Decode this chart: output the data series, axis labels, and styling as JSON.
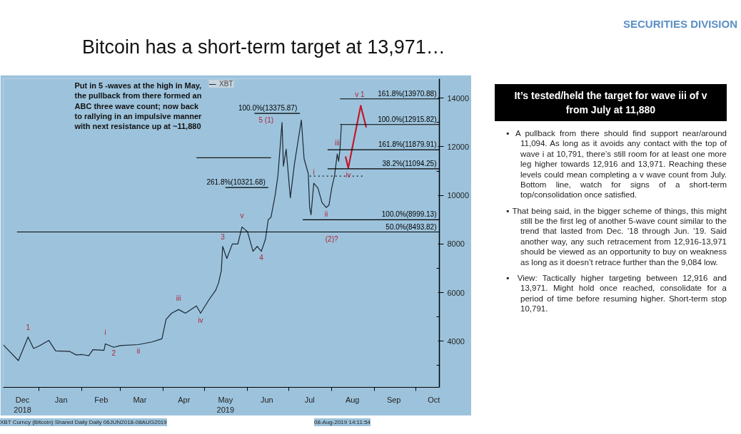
{
  "chart_data": [
    {
      "type": "line",
      "title": "Bitcoin has a short-term target at 13,971…",
      "xlim": [
        "2018-12-06",
        "2019-10-18"
      ],
      "xticks": [
        {
          "value": "2018-12-20",
          "label": "Dec\n2018"
        },
        {
          "value": "2019-01-01",
          "label": null
        },
        {
          "value": "2019-01-17",
          "label": "Jan"
        },
        {
          "value": "2019-02-01",
          "label": null
        },
        {
          "value": "2019-02-15",
          "label": "Feb"
        },
        {
          "value": "2019-03-01",
          "label": null
        },
        {
          "value": "2019-03-15",
          "label": "Mar"
        },
        {
          "value": "2019-04-01",
          "label": null
        },
        {
          "value": "2019-04-16",
          "label": "Apr"
        },
        {
          "value": "2019-05-01",
          "label": null
        },
        {
          "value": "2019-05-16",
          "label": "May\n2019"
        },
        {
          "value": "2019-06-01",
          "label": null
        },
        {
          "value": "2019-06-15",
          "label": "Jun"
        },
        {
          "value": "2019-07-01",
          "label": null
        },
        {
          "value": "2019-07-16",
          "label": "Jul"
        },
        {
          "value": "2019-08-01",
          "label": null
        },
        {
          "value": "2019-08-16",
          "label": "Aug"
        },
        {
          "value": "2019-09-01",
          "label": null
        },
        {
          "value": "2019-09-15",
          "label": "Sep"
        },
        {
          "value": "2019-10-01",
          "label": null
        },
        {
          "value": "2019-10-14",
          "label": "Oct"
        }
      ],
      "ylim": [
        2100,
        14800
      ],
      "yticks": [
        {
          "value": 3000,
          "label": null
        },
        4000,
        {
          "value": 5000,
          "label": null
        },
        6000,
        {
          "value": 7000,
          "label": null
        },
        8000,
        {
          "value": 9000,
          "label": null
        },
        10000,
        {
          "value": 11000,
          "label": null
        },
        12000,
        {
          "value": 13000,
          "label": null
        },
        14000
      ],
      "grid": false,
      "legend": "top",
      "marker": "none",
      "x": [
        "2018-12-06",
        "2018-12-17",
        "2018-12-24",
        "2018-12-28",
        "2019-01-01",
        "2019-01-08",
        "2019-01-13",
        "2019-01-23",
        "2019-01-28",
        "2019-02-01",
        "2019-02-06",
        "2019-02-09",
        "2019-02-17",
        "2019-02-18",
        "2019-02-24",
        "2019-03-01",
        "2019-03-14",
        "2019-03-24",
        "2019-03-31",
        "2019-04-03",
        "2019-04-07",
        "2019-04-12",
        "2019-04-17",
        "2019-04-25",
        "2019-04-28",
        "2019-05-04",
        "2019-05-09",
        "2019-05-11",
        "2019-05-13",
        "2019-05-14",
        "2019-05-17",
        "2019-05-21",
        "2019-05-25",
        "2019-05-28",
        "2019-05-30",
        "2019-06-01",
        "2019-06-05",
        "2019-06-08",
        "2019-06-11",
        "2019-06-14",
        "2019-06-16",
        "2019-06-18",
        "2019-06-21",
        "2019-06-23",
        "2019-06-26",
        "2019-06-27",
        "2019-06-29",
        "2019-07-02",
        "2019-07-05",
        "2019-07-10",
        "2019-07-12",
        "2019-07-15",
        "2019-07-16",
        "2019-07-17",
        "2019-07-19",
        "2019-07-22",
        "2019-07-25",
        "2019-07-28",
        "2019-07-30",
        "2019-08-01",
        "2019-08-03",
        "2019-08-05",
        "2019-08-06",
        "2019-08-07",
        "2019-08-08"
      ],
      "series": [
        {
          "name": "XBT",
          "color": "#1c2733",
          "values": [
            3850,
            3200,
            4170,
            3700,
            3800,
            4030,
            3600,
            3580,
            3430,
            3450,
            3400,
            3650,
            3620,
            3890,
            3750,
            3820,
            3860,
            3970,
            4100,
            4900,
            5150,
            5300,
            5150,
            5450,
            5150,
            5700,
            6100,
            6400,
            6900,
            7900,
            7400,
            8000,
            8000,
            8700,
            8600,
            8500,
            7700,
            7900,
            7700,
            8200,
            9000,
            9100,
            10000,
            10800,
            13000,
            11200,
            11900,
            9900,
            11300,
            13100,
            11500,
            10900,
            9500,
            9200,
            10500,
            10300,
            9700,
            9500,
            9600,
            10300,
            10800,
            11700,
            11400,
            11900,
            12900
          ]
        },
        {
          "type": "line",
          "color": "#c0182b",
          "x": [
            "2019-08-11",
            "2019-08-13",
            "2019-08-22",
            "2019-08-26"
          ],
          "values": [
            11600,
            11130,
            13690,
            12800
          ]
        },
        {
          "type": "line",
          "name": "161.8%(13970.88)",
          "color": "#000000",
          "x": [
            "2019-08-07",
            "2019-10-18"
          ],
          "values": [
            13970.88,
            13970.88
          ]
        },
        {
          "type": "line",
          "name": "100.0%(12915.82)",
          "color": "#000000",
          "x": [
            "2019-08-07",
            "2019-10-18"
          ],
          "values": [
            12915.82,
            12915.82
          ]
        },
        {
          "type": "line",
          "name": "161.8%(11879.91)",
          "color": "#000000",
          "x": [
            "2019-07-29",
            "2019-10-18"
          ],
          "values": [
            11879.91,
            11879.91
          ]
        },
        {
          "type": "line",
          "name": "38.2%(11094.25)",
          "color": "#000000",
          "x": [
            "2019-07-29",
            "2019-10-18"
          ],
          "values": [
            11094.25,
            11094.25
          ]
        },
        {
          "type": "line",
          "color": "#1a1a1a",
          "line_style": "dotted",
          "x": [
            "2019-07-16",
            "2019-08-24"
          ],
          "values": [
            10791,
            10791
          ]
        },
        {
          "type": "line",
          "name": "100.0%(8999.13)",
          "color": "#000000",
          "x": [
            "2019-07-11",
            "2019-10-18"
          ],
          "values": [
            8999.13,
            8999.13
          ]
        },
        {
          "type": "line",
          "name": "50.0%(8493.82)",
          "color": "#000000",
          "x": [
            "2018-12-16",
            "2019-10-18"
          ],
          "values": [
            8493.82,
            8493.82
          ]
        },
        {
          "type": "line",
          "name": "100.0%(13375.87)",
          "color": "#000000",
          "x": [
            "2019-06-06",
            "2019-07-09"
          ],
          "values": [
            13375.87,
            13375.87
          ]
        },
        {
          "type": "line",
          "name": "261.8%(10321.68)",
          "color": "#000000",
          "x": [
            "2019-05-16",
            "2019-06-16"
          ],
          "values": [
            10321.68,
            10321.68
          ]
        },
        {
          "type": "line",
          "color": "#1a1a1a",
          "x": [
            "2019-04-25",
            "2019-06-18"
          ],
          "values": [
            11550,
            11550
          ]
        }
      ],
      "annotations": [
        "Put in 5 -waves at  the high in May,\nthe pullback from there formed an\nABC  three  wave count; now back\nto rallying in an impulsive manner\nwith next resistance up at ~11,880",
        "XBT Curncy (Bitcoin) Shared Daily  Daily 06JUN2018-08AUG2019",
        "08-Aug-2019 14:11:54",
        "5  (1)",
        {
          "text": "1",
          "x": "2018-12-24",
          "y": 4170
        },
        {
          "text": "i",
          "x": "2019-02-18",
          "y": 3890
        },
        {
          "text": "2",
          "x": "2019-02-24",
          "y": 3750
        },
        {
          "text": "ii",
          "x": "2019-03-14",
          "y": 3860
        },
        {
          "text": "iii",
          "x": "2019-04-12",
          "y": 5300
        },
        {
          "text": "iv",
          "x": "2019-04-28",
          "y": 5150
        },
        {
          "text": "3",
          "x": "2019-05-14",
          "y": 7900
        },
        {
          "text": "v",
          "x": "2019-05-28",
          "y": 8700
        },
        {
          "text": "4",
          "x": "2019-06-11",
          "y": 7700
        },
        {
          "text": "i",
          "x": "2019-07-19",
          "y": 10500
        },
        {
          "text": "iii",
          "x": "2019-08-05",
          "y": 11700
        },
        {
          "text": "ii",
          "x": "2019-07-28",
          "y": 9500
        },
        {
          "text": "iv",
          "x": "2019-08-13",
          "y": 11130
        },
        {
          "text": "(2)?",
          "x": "2019-08-01",
          "y": 8493.82
        },
        {
          "text": "v  1",
          "x": "2019-08-22",
          "y": 13690
        }
      ]
    },
    {
      "type": "other",
      "subtitle": "SECURITIES DIVISION",
      "title": "It’s tested/held the target for wave iii of v from July at 11,880",
      "annotations": [
        "▪ A pullback from there should find support near/around 11,094. As long as it avoids any contact with the top of wave i at 10,791, there’s still room for at least one more leg higher towards 12,916 and 13,971. Reaching these levels could mean completing a v wave count from July. Bottom line, watch for signs of a short-term top/consolidation once satisfied.",
        "▪ That being said, in the bigger scheme of things, this might still be the first leg of another 5-wave count similar to the trend that lasted from Dec. ’18 through Jun. ’19. Said another way, any such retracement from 12,916-13,971 should be viewed as an opportunity to buy on weakness as long as it doesn’t retrace further than the 9,084 low.",
        "▪ View: Tactically higher targeting between 12,916 and 13,971. Might hold once reached, consolidate for a period of time before resuming higher. Short-term stop 10,791."
      ]
    }
  ]
}
